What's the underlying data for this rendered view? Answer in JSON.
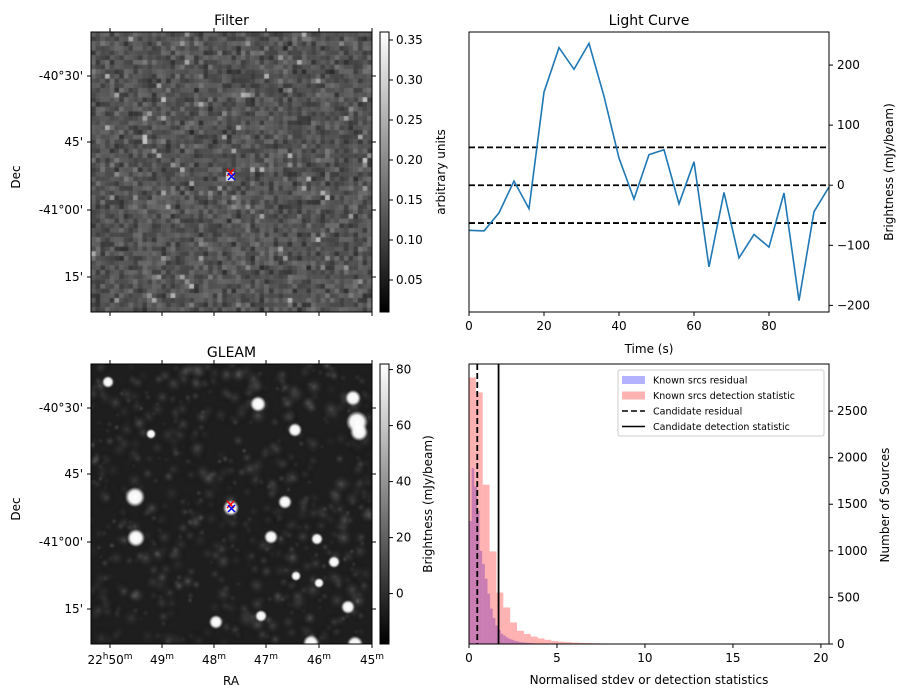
{
  "chart_data": [
    {
      "type": "heatmap",
      "title": "Filter",
      "xlabel": "",
      "ylabel": "Dec",
      "yticks": [
        "-40°30'",
        "45'",
        "-41°00'",
        "15'"
      ],
      "colorbar": {
        "label": "arbitrary units",
        "ticks": [
          0.05,
          0.1,
          0.15,
          0.2,
          0.25,
          0.3,
          0.35
        ],
        "tick_labels": [
          "0.05",
          "0.10",
          "0.15",
          "0.20",
          "0.25",
          "0.30",
          "0.35"
        ],
        "range": [
          0.01,
          0.36
        ],
        "colormap": "gray"
      },
      "markers": [
        {
          "symbol": "x",
          "color": "#ff0000"
        },
        {
          "symbol": "x",
          "color": "#0000ff"
        }
      ]
    },
    {
      "type": "line",
      "title": "Light Curve",
      "xlabel": "Time (s)",
      "ylabel": "Brightness (mJy/beam)",
      "xlim": [
        0,
        96
      ],
      "ylim": [
        -211,
        255
      ],
      "xticks": [
        0,
        20,
        40,
        60,
        80
      ],
      "yticks": [
        -200,
        -100,
        0,
        100,
        200
      ],
      "ytick_labels": [
        "−200",
        "−100",
        "0",
        "100",
        "200"
      ],
      "x": [
        0,
        4,
        8,
        12,
        16,
        20,
        24,
        28,
        32,
        36,
        40,
        44,
        48,
        52,
        56,
        60,
        64,
        68,
        72,
        76,
        80,
        84,
        88,
        92,
        96
      ],
      "series": [
        {
          "name": "light curve",
          "color": "#1f77b4",
          "values": [
            -75,
            -76,
            -46,
            7,
            -39,
            155,
            229,
            193,
            236,
            148,
            45,
            -23,
            51,
            59,
            -31,
            39,
            -136,
            -12,
            -121,
            -82,
            -103,
            -13,
            -192,
            -44,
            -3
          ]
        }
      ],
      "hlines": [
        {
          "value": 63,
          "style": "dashed"
        },
        {
          "value": 0,
          "style": "dashed"
        },
        {
          "value": -63,
          "style": "dashed"
        }
      ]
    },
    {
      "type": "heatmap",
      "title": "GLEAM",
      "xlabel": "RA",
      "ylabel": "Dec",
      "yticks": [
        "-40°30'",
        "45'",
        "-41°00'",
        "15'"
      ],
      "xticks": [
        {
          "main": "22",
          "sup1": "h",
          "mid": "50",
          "sup2": "m"
        },
        {
          "main": "49",
          "sup2": "m"
        },
        {
          "main": "48",
          "sup2": "m"
        },
        {
          "main": "47",
          "sup2": "m"
        },
        {
          "main": "46",
          "sup2": "m"
        },
        {
          "main": "45",
          "sup2": "m"
        }
      ],
      "colorbar": {
        "label": "Brightness (mJy/beam)",
        "ticks": [
          0,
          20,
          40,
          60,
          80
        ],
        "tick_labels": [
          "0",
          "20",
          "40",
          "60",
          "80"
        ],
        "range": [
          -18,
          82
        ],
        "colormap": "gray"
      },
      "markers": [
        {
          "symbol": "x",
          "color": "#ff0000"
        },
        {
          "symbol": "x",
          "color": "#0000ff"
        }
      ]
    },
    {
      "type": "bar",
      "title": "",
      "xlabel": "Normalised stdev or detection statistics",
      "ylabel": "Number of Sources",
      "xlim": [
        0,
        20.46
      ],
      "ylim": [
        0,
        3005
      ],
      "xticks": [
        0,
        5,
        10,
        15,
        20
      ],
      "yticks": [
        0,
        500,
        1000,
        1500,
        2000,
        2500
      ],
      "legend_position": "top-right",
      "series": [
        {
          "name": "Known srcs residual",
          "color": "#0000ff",
          "alpha": 0.3,
          "bin_start": 0,
          "bin_width": 0.15,
          "values": [
            1320,
            1890,
            1690,
            1430,
            1000,
            860,
            700,
            540,
            380,
            280,
            200,
            150,
            110,
            90,
            70,
            55,
            45,
            35,
            28,
            22,
            18,
            15,
            12,
            10,
            8,
            6,
            5,
            4,
            3,
            3,
            2,
            2,
            2,
            1,
            1,
            1,
            1,
            1,
            1,
            1
          ]
        },
        {
          "name": "Known srcs detection statistic",
          "color": "#ff0000",
          "alpha": 0.3,
          "bin_start": 0,
          "bin_width": 0.39,
          "values": [
            2860,
            2700,
            1710,
            994,
            552,
            392,
            231,
            142,
            107,
            80,
            60,
            45,
            32,
            25,
            20,
            15,
            12,
            10,
            8,
            6,
            4,
            3,
            2,
            1,
            1,
            0,
            0,
            1,
            0,
            0,
            1,
            0,
            0,
            0,
            0,
            0,
            0,
            0,
            0,
            0,
            0,
            0,
            0,
            0,
            0,
            0,
            0,
            0,
            0,
            1
          ]
        }
      ],
      "vlines": [
        {
          "name": "Candidate residual",
          "value": 0.47,
          "style": "dashed"
        },
        {
          "name": "Candidate detection statistic",
          "value": 1.68,
          "style": "solid"
        }
      ]
    }
  ]
}
